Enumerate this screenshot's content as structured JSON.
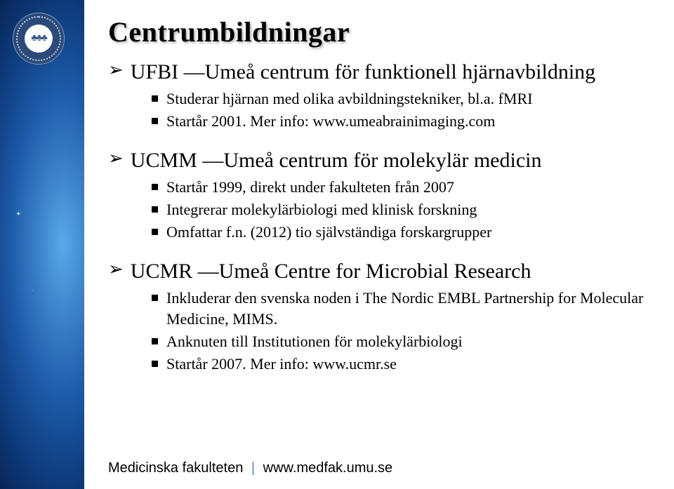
{
  "colors": {
    "background_white": "#ffffff",
    "text_black": "#000000",
    "separator_blue": "#5a8fc8",
    "gradient_stops": [
      "#5aa9e6",
      "#3a7fc8",
      "#1d5aa8",
      "#0d3a7a",
      "#071d4a",
      "#030c28"
    ],
    "logo_bg": "#2b4a7a",
    "logo_ring": "#c8d4e8",
    "logo_inner": "#ffffff"
  },
  "typography": {
    "title_fontsize": 40,
    "heading_fontsize": 30,
    "sub_fontsize": 22,
    "footer_fontsize": 20,
    "body_family": "Georgia",
    "footer_family": "Arial"
  },
  "title": "Centrumbildningar",
  "sections": [
    {
      "heading": "UFBI —Umeå centrum för funktionell hjärnavbildning",
      "items": [
        "Studerar hjärnan med olika avbildningstekniker, bl.a. fMRI",
        "Startår 2001. Mer info: www.umeabrainimaging.com"
      ]
    },
    {
      "heading": "UCMM —Umeå centrum för molekylär medicin",
      "items": [
        "Startår 1999, direkt under fakulteten från 2007",
        "Integrerar molekylärbiologi med klinisk forskning",
        "Omfattar f.n. (2012) tio självständiga forskargrupper"
      ]
    },
    {
      "heading": "UCMR —Umeå Centre for Microbial Research",
      "items": [
        "Inkluderar den svenska noden i The Nordic EMBL Partnership for Molecular Medicine, MIMS.",
        "Anknuten till Institutionen för molekylärbiologi",
        "Startår 2007. Mer info: www.ucmr.se"
      ]
    }
  ],
  "footer": {
    "left": "Medicinska fakulteten",
    "separator": "|",
    "right": "www.medfak.umu.se"
  },
  "logo_glyph": "♣♣♣"
}
